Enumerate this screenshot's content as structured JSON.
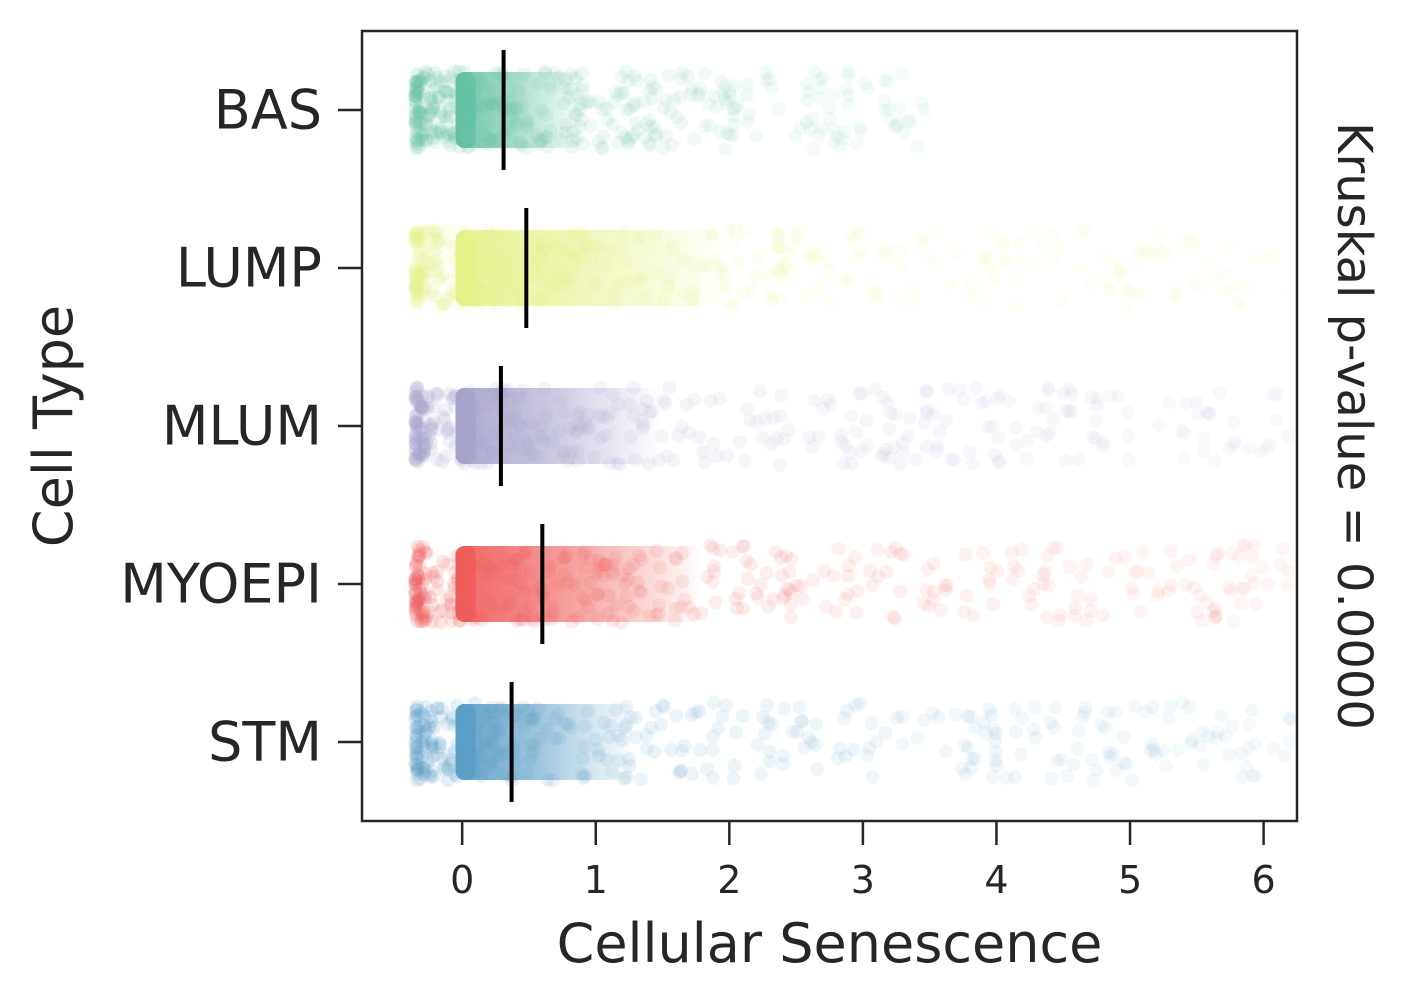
{
  "chart_data": {
    "type": "scatter",
    "subtype": "strip",
    "orientation": "horizontal",
    "title": "",
    "xlabel": "Cellular Senescence",
    "ylabel": "Cell Type",
    "right_label": "Kruskal p-value = 0.0000",
    "xlim": [
      -0.75,
      6.25
    ],
    "xticks": [
      "0",
      "1",
      "2",
      "3",
      "4",
      "5",
      "6"
    ],
    "categories": [
      "BAS",
      "LUMP",
      "MLUM",
      "MYOEPI",
      "STM"
    ],
    "series": [
      {
        "name": "BAS",
        "color": "#66c2a5",
        "median": 0.31,
        "dense_range": [
          0.0,
          0.9
        ],
        "max": 3.5
      },
      {
        "name": "LUMP",
        "color": "#e6f28a",
        "median": 0.48,
        "dense_range": [
          0.0,
          2.0
        ],
        "max": 6.25
      },
      {
        "name": "MLUM",
        "color": "#a6a3cb",
        "median": 0.29,
        "dense_range": [
          0.0,
          1.5
        ],
        "max": 6.25
      },
      {
        "name": "MYOEPI",
        "color": "#ee5d5a",
        "median": 0.6,
        "dense_range": [
          0.0,
          1.8
        ],
        "max": 6.25
      },
      {
        "name": "STM",
        "color": "#5a9ec6",
        "median": 0.37,
        "dense_range": [
          0.0,
          1.3
        ],
        "max": 6.25
      }
    ],
    "grid": false,
    "legend": "none"
  }
}
